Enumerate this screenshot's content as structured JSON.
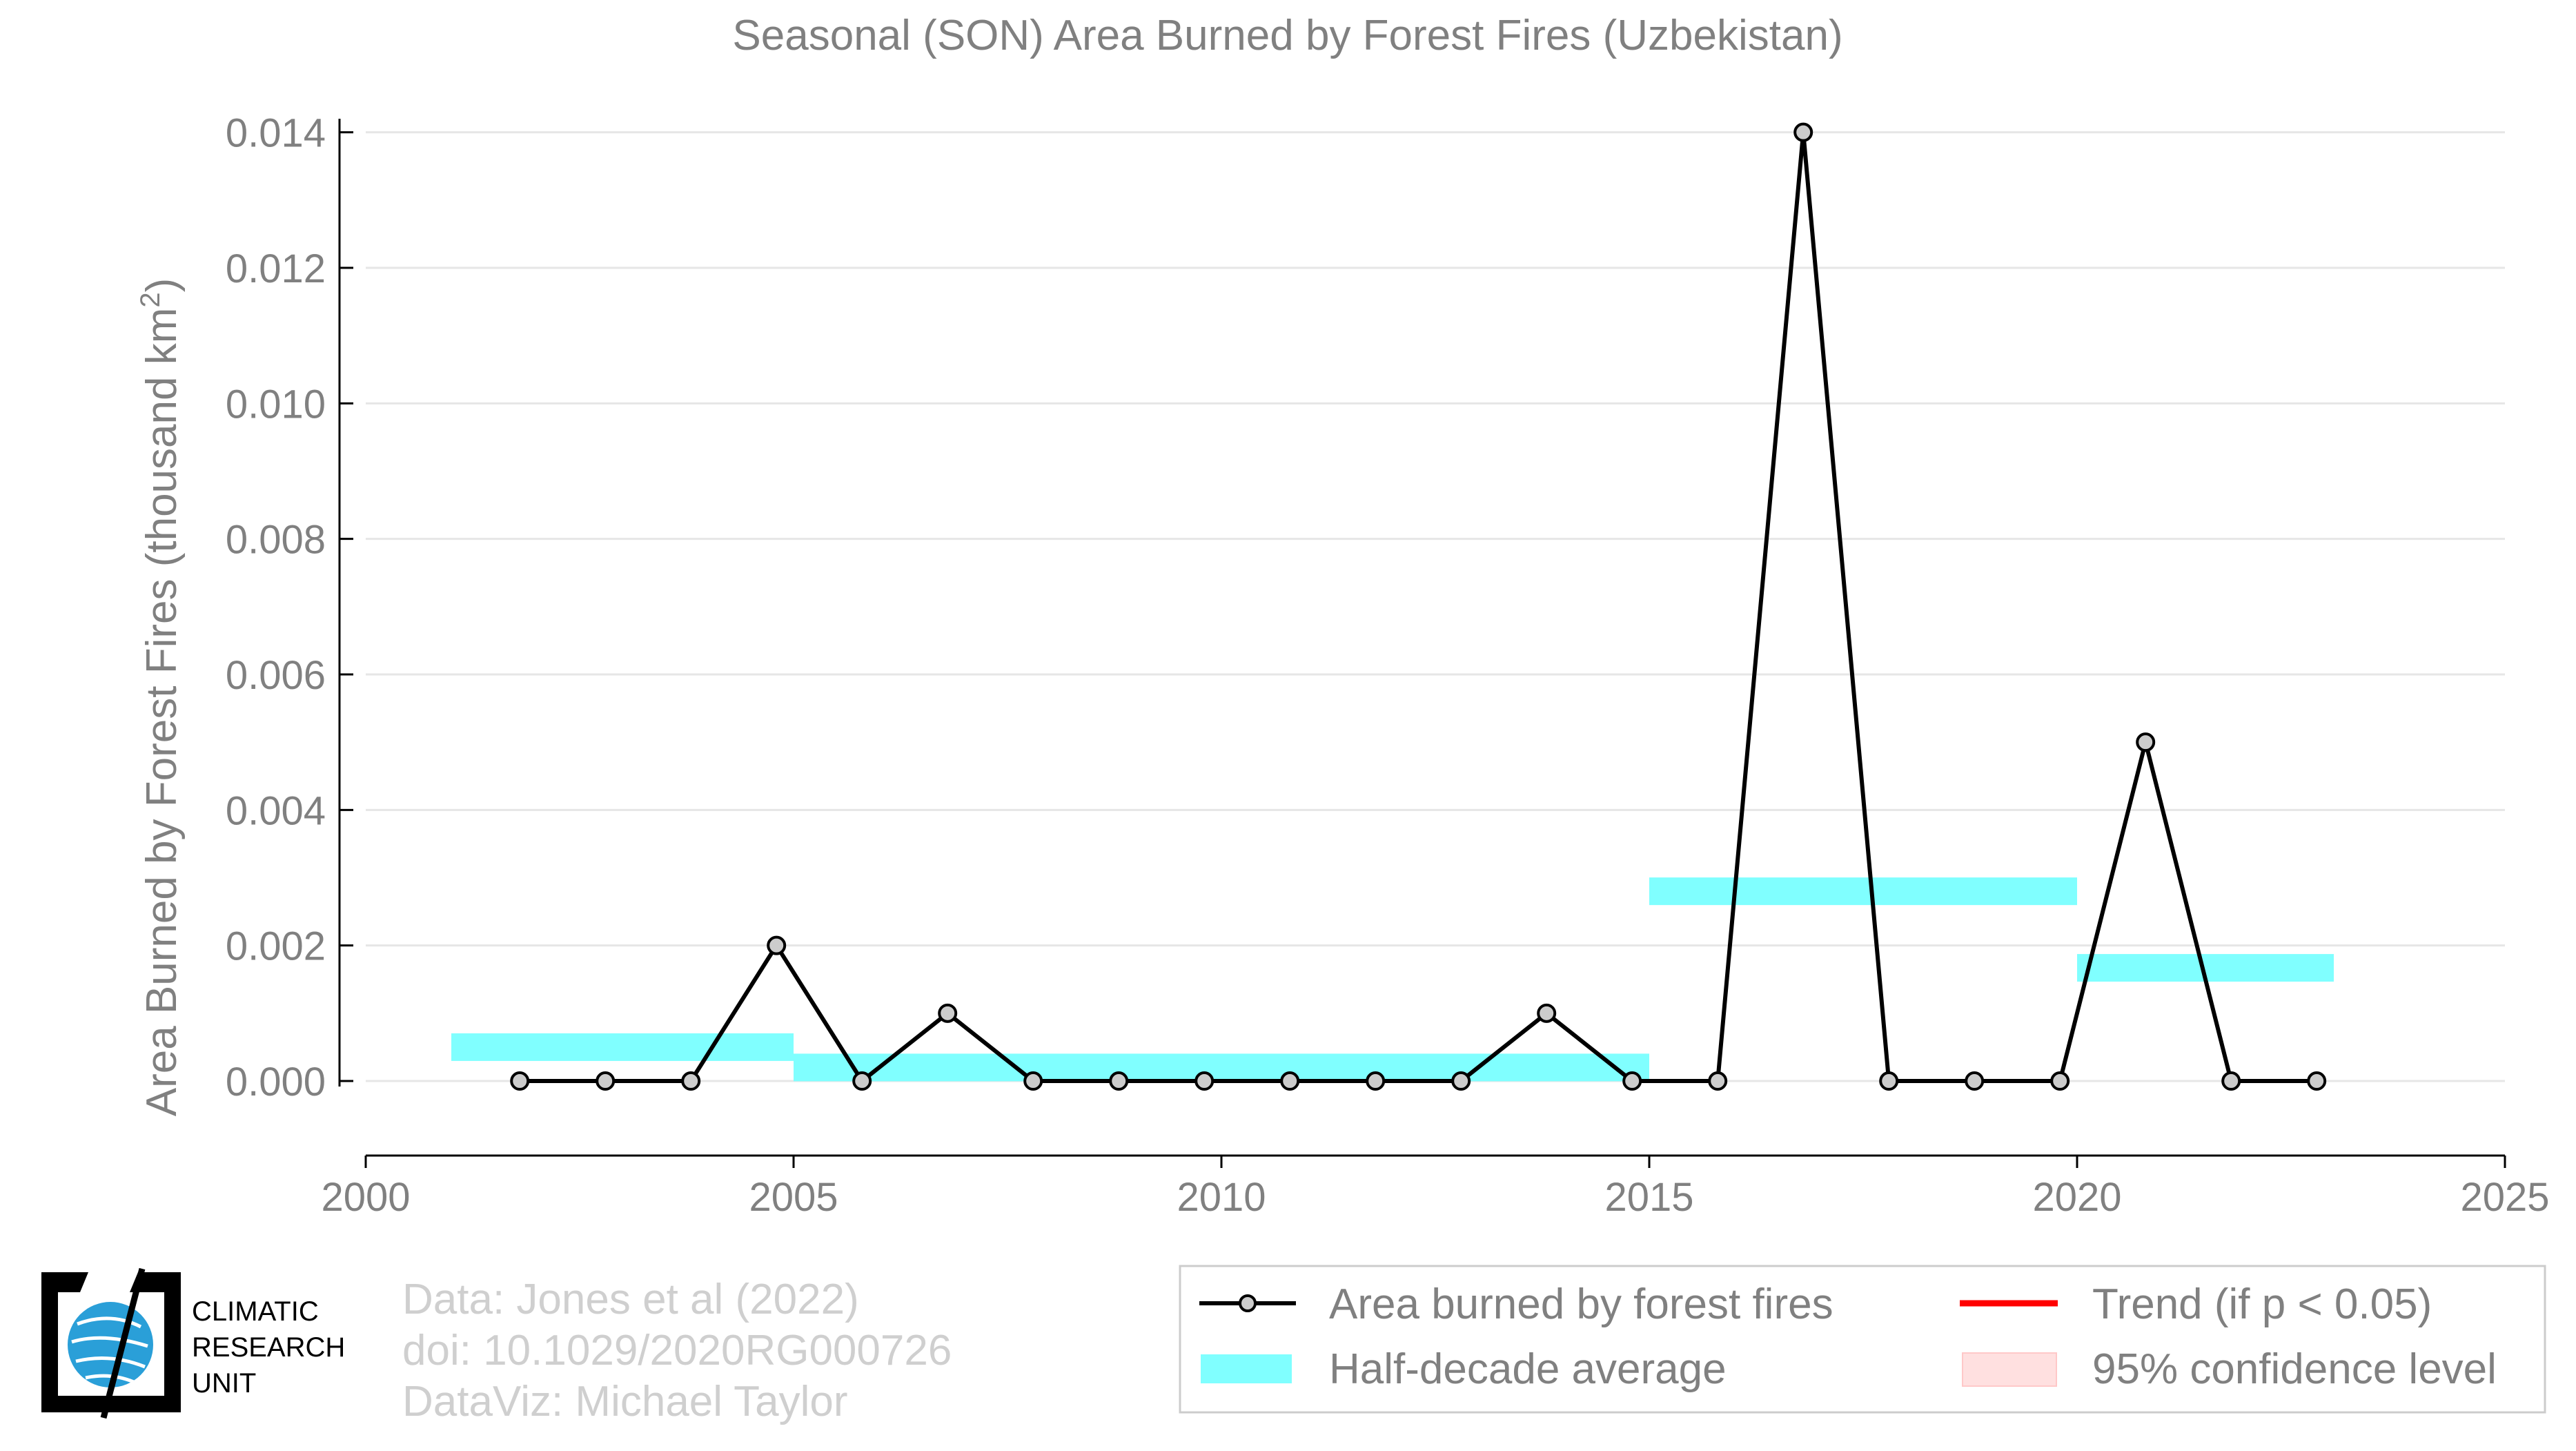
{
  "chart_data": {
    "type": "line",
    "title": "Seasonal (SON) Area Burned by Forest Fires (Uzbekistan)",
    "ylabel_main": "Area Burned by Forest Fires (thousand km",
    "ylabel_sup": "2",
    "ylabel_end": ")",
    "xlabel": "",
    "xlim": [
      2000,
      2025
    ],
    "ylim": [
      -0.0011,
      0.0142
    ],
    "x_ticks": [
      2000,
      2005,
      2010,
      2015,
      2020,
      2025
    ],
    "x_tick_labels": [
      "2000",
      "2005",
      "2010",
      "2015",
      "2020",
      "2025"
    ],
    "y_ticks": [
      0.0,
      0.002,
      0.004,
      0.006,
      0.008,
      0.01,
      0.012,
      0.014
    ],
    "y_tick_labels": [
      "0.000",
      "0.002",
      "0.004",
      "0.006",
      "0.008",
      "0.010",
      "0.012",
      "0.014"
    ],
    "grid": "horizontal",
    "series": [
      {
        "name": "Area burned by forest fires",
        "color": "#000000",
        "x": [
          2001.8,
          2002.8,
          2003.8,
          2004.8,
          2005.8,
          2006.8,
          2007.8,
          2008.8,
          2009.8,
          2010.8,
          2011.8,
          2012.8,
          2013.8,
          2014.8,
          2015.8,
          2016.8,
          2017.8,
          2018.8,
          2019.8,
          2020.8,
          2021.8,
          2022.8
        ],
        "y": [
          0.0,
          0.0,
          0.0,
          0.002,
          0.0,
          0.001,
          0.0,
          0.0,
          0.0,
          0.0,
          0.0,
          0.0,
          0.001,
          0.0,
          0.0,
          0.014,
          0.0,
          0.0,
          0.0,
          0.005,
          0.0,
          0.0
        ]
      }
    ],
    "half_decade_average": {
      "name": "Half-decade average",
      "color": "#80ffff",
      "segments": [
        {
          "x0": 2001,
          "x1": 2005,
          "y": 0.0005
        },
        {
          "x0": 2005,
          "x1": 2015,
          "y": 0.0002
        },
        {
          "x0": 2015,
          "x1": 2020,
          "y": 0.0028
        },
        {
          "x0": 2020,
          "x1": 2023,
          "y": 0.00167
        }
      ]
    },
    "legend": {
      "placement": "bottom-right",
      "items": [
        {
          "label": "Area burned by forest fires",
          "kind": "line-marker",
          "color": "#000000"
        },
        {
          "label": "Trend (if p < 0.05)",
          "kind": "line",
          "color": "#ff0000"
        },
        {
          "label": "Half-decade average",
          "kind": "band",
          "color": "#80ffff"
        },
        {
          "label": "95% confidence level",
          "kind": "band",
          "color": "#ffe0e0"
        }
      ]
    }
  },
  "footer": {
    "credit_lines": [
      "Data: Jones et al (2022)",
      "doi: 10.1029/2020RG000726",
      "DataViz: Michael Taylor"
    ],
    "logo_lines": [
      "CLIMATIC",
      "RESEARCH",
      "UNIT"
    ]
  },
  "colors": {
    "axis_text": "#808080",
    "grid": "#e6e6e6",
    "credit_text": "#cfcfcf"
  }
}
